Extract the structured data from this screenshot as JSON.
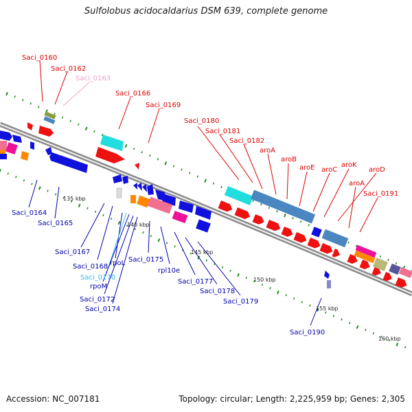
{
  "title": "Sulfolobus acidocaldarius DSM 639, complete genome",
  "footer": {
    "accession": "Accession: NC_007181",
    "info": "Topology: circular; Length: 2,225,959 bp; Genes: 2,305"
  },
  "ticks": [
    "135 kbp",
    "140 kbp",
    "145 kbp",
    "150 kbp",
    "155 kbp",
    "160 kbp"
  ],
  "upper_labels": [
    {
      "text": "Saci_0160",
      "color": "#dd0000"
    },
    {
      "text": "Saci_0162",
      "color": "#dd0000"
    },
    {
      "text": "Saci_0163",
      "color": "#f0a0c8"
    },
    {
      "text": "Saci_0166",
      "color": "#dd0000"
    },
    {
      "text": "Saci_0169",
      "color": "#dd0000"
    },
    {
      "text": "Saci_0180",
      "color": "#dd0000"
    },
    {
      "text": "Saci_0181",
      "color": "#dd0000"
    },
    {
      "text": "Saci_0182",
      "color": "#dd0000"
    },
    {
      "text": "aroA",
      "color": "#dd0000"
    },
    {
      "text": "aroB",
      "color": "#dd0000"
    },
    {
      "text": "aroE",
      "color": "#dd0000"
    },
    {
      "text": "aroC",
      "color": "#dd0000"
    },
    {
      "text": "aroK",
      "color": "#dd0000"
    },
    {
      "text": "aroD",
      "color": "#dd0000"
    },
    {
      "text": "aroA",
      "color": "#dd0000"
    },
    {
      "text": "Saci_0191",
      "color": "#dd0000"
    }
  ],
  "lower_labels": [
    {
      "text": "Saci_0164",
      "color": "#0000aa"
    },
    {
      "text": "Saci_0165",
      "color": "#0000aa"
    },
    {
      "text": "Saci_0167",
      "color": "#0000aa"
    },
    {
      "text": "Saci_0168",
      "color": "#0000aa"
    },
    {
      "text": "rpoL",
      "color": "#0000aa"
    },
    {
      "text": "Saci_0170",
      "color": "#33bbee"
    },
    {
      "text": "rpoM",
      "color": "#0000aa"
    },
    {
      "text": "Saci_0172",
      "color": "#0000aa"
    },
    {
      "text": "Saci_0174",
      "color": "#0000aa"
    },
    {
      "text": "Saci_0175",
      "color": "#0000aa"
    },
    {
      "text": "rpl10e",
      "color": "#0000aa"
    },
    {
      "text": "Saci_0177",
      "color": "#0000aa"
    },
    {
      "text": "Saci_0178",
      "color": "#0000aa"
    },
    {
      "text": "Saci_0179",
      "color": "#0000aa"
    },
    {
      "text": "Saci_0190",
      "color": "#0000aa"
    }
  ],
  "colors": {
    "forward": "#ee1111",
    "reverse": "#1111dd",
    "cyan": "#22dddd",
    "steelblue": "#4a86c0",
    "pink": "#f07090",
    "magenta": "#ee1199",
    "orange": "#ff8800",
    "olive": "#8a9a40",
    "backbone": "#777777",
    "tick_mark": "#228822"
  }
}
